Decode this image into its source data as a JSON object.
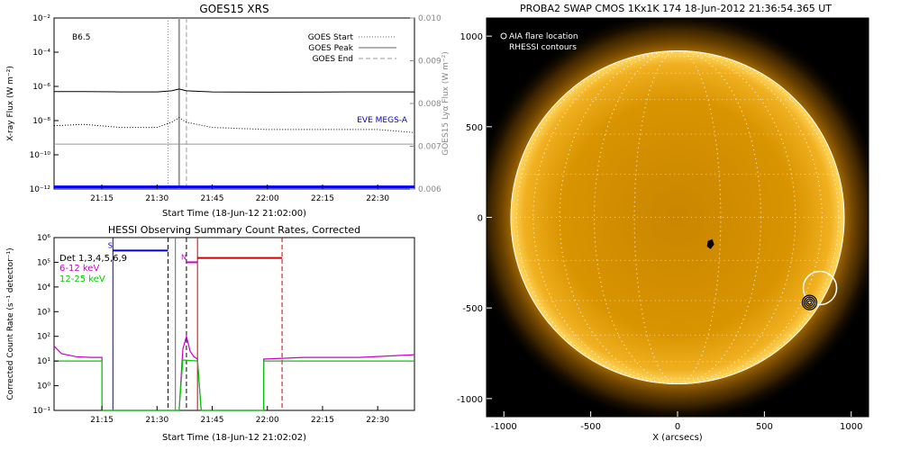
{
  "chart_data": [
    {
      "type": "line",
      "title": "GOES15 XRS",
      "xlabel": "Start Time (18-Jun-12 21:02:00)",
      "ylabel": "X-ray Flux (W m⁻²)",
      "y2label": "GOES15 Lyα Flux (W m⁻²)",
      "x_ticks": [
        "21:15",
        "21:30",
        "21:45",
        "22:00",
        "22:15",
        "22:30"
      ],
      "xlim": [
        "21:02",
        "22:40"
      ],
      "y_scale": "log",
      "ylim": [
        1e-12,
        0.01
      ],
      "y_tick_labels": [
        "10⁻¹²",
        "10⁻¹⁰",
        "10⁻⁸",
        "10⁻⁶",
        "10⁻⁴",
        "10⁻²"
      ],
      "y2lim": [
        0.006,
        0.01
      ],
      "y2_tick_labels": [
        "0.006",
        "0.007",
        "0.008",
        "0.009",
        "0.010"
      ],
      "class_label": "B6.5",
      "legend": [
        {
          "label": "GOES Start",
          "style": "dotted"
        },
        {
          "label": "GOES Peak",
          "style": "solid"
        },
        {
          "label": "GOES End",
          "style": "dashed"
        }
      ],
      "legend_position": "top-right",
      "annotation": "EVE MEGS-A",
      "annotation_color": "#0000cc",
      "markers": {
        "start": "21:33",
        "peak": "21:36",
        "end": "21:38"
      },
      "series": [
        {
          "color": "#000000",
          "style": "solid",
          "x": [
            "21:02",
            "21:10",
            "21:20",
            "21:30",
            "21:34",
            "21:36",
            "21:38",
            "21:45",
            "22:00",
            "22:15",
            "22:30",
            "22:40"
          ],
          "y": [
            5e-07,
            5e-07,
            4.8e-07,
            4.8e-07,
            5.5e-07,
            7e-07,
            5.5e-07,
            4.8e-07,
            4.6e-07,
            4.7e-07,
            4.8e-07,
            4.8e-07
          ]
        },
        {
          "color": "#000000",
          "style": "dotted",
          "x": [
            "21:02",
            "21:10",
            "21:20",
            "21:30",
            "21:34",
            "21:36",
            "21:38",
            "21:45",
            "22:00",
            "22:15",
            "22:30",
            "22:40"
          ],
          "y": [
            5e-09,
            6e-09,
            4e-09,
            4e-09,
            8e-09,
            1.5e-08,
            8e-09,
            4e-09,
            3e-09,
            3e-09,
            3e-09,
            2e-09
          ]
        },
        {
          "color": "#999999",
          "style": "solid",
          "x": [
            "21:02",
            "22:40"
          ],
          "y": [
            0.00705,
            0.00705
          ]
        },
        {
          "color": "#0000ff",
          "style": "solid",
          "x": [
            "21:02",
            "22:40"
          ],
          "y": [
            0.00605,
            0.00605
          ]
        }
      ]
    },
    {
      "type": "line",
      "title": "HESSI Observing Summary Count Rates, Corrected",
      "xlabel": "Start Time (18-Jun-12 21:02:02)",
      "ylabel": "Corrected Count Rate (s⁻¹ detector⁻¹)",
      "x_ticks": [
        "21:15",
        "21:30",
        "21:45",
        "22:00",
        "22:15",
        "22:30"
      ],
      "xlim": [
        "21:02",
        "22:40"
      ],
      "y_scale": "log",
      "ylim": [
        0.1,
        1000000.0
      ],
      "y_tick_labels": [
        "10⁻¹",
        "10⁰",
        "10¹",
        "10²",
        "10³",
        "10⁴",
        "10⁵",
        "10⁶"
      ],
      "legend": [
        {
          "label": "Det 1,3,4,5,6,9",
          "color": "#000000"
        },
        {
          "label": "6-12 keV",
          "color": "#cc00cc"
        },
        {
          "label": "12-25 keV",
          "color": "#00cc00"
        }
      ],
      "legend_position": "top-left",
      "flags": [
        {
          "label": "S",
          "color": "#0000cc",
          "x_start": "21:18",
          "x_end": "21:33",
          "y": 300000.0
        },
        {
          "label": "N",
          "color": "#cc00cc",
          "x_start": "21:38",
          "x_end": "21:41",
          "y": 100000.0
        },
        {
          "label": "",
          "color": "#cc0000",
          "x_start": "21:41",
          "x_end": "22:04",
          "y": 150000.0
        }
      ],
      "vlines": [
        {
          "x": "21:18",
          "color": "#0000cc",
          "style": "solid"
        },
        {
          "x": "21:33",
          "color": "#000000",
          "style": "dashed"
        },
        {
          "x": "21:35",
          "color": "#666666",
          "style": "solid"
        },
        {
          "x": "21:38",
          "color": "#000000",
          "style": "dashed"
        },
        {
          "x": "21:41",
          "color": "#cc0000",
          "style": "solid"
        },
        {
          "x": "22:04",
          "color": "#cc0000",
          "style": "dashed"
        }
      ],
      "series": [
        {
          "name": "6-12 keV",
          "color": "#cc00cc",
          "x": [
            "21:02",
            "21:04",
            "21:08",
            "21:12",
            "21:15",
            "21:15",
            "21:36",
            "21:37",
            "21:38",
            "21:39",
            "21:40",
            "21:41",
            "21:42",
            "21:59",
            "21:59",
            "22:10",
            "22:25",
            "22:40"
          ],
          "y": [
            40,
            20,
            15,
            14,
            14,
            0.1,
            0.1,
            30,
            100,
            25,
            15,
            12,
            0.1,
            0.1,
            12,
            14,
            14,
            18
          ]
        },
        {
          "name": "12-25 keV",
          "color": "#00cc00",
          "x": [
            "21:02",
            "21:10",
            "21:15",
            "21:15",
            "21:36",
            "21:37",
            "21:41",
            "21:42",
            "21:59",
            "21:59",
            "22:10",
            "22:25",
            "22:40"
          ],
          "y": [
            10,
            10,
            10,
            0.1,
            0.1,
            11,
            10,
            0.1,
            0.1,
            10,
            10,
            10,
            10
          ]
        }
      ]
    },
    {
      "type": "image",
      "title": "PROBA2 SWAP CMOS 1Kx1K 174 18-Jun-2012 21:36:54.365 UT",
      "xlabel": "X (arcsecs)",
      "xlim": [
        -1100,
        1100
      ],
      "ylim": [
        -1100,
        1100
      ],
      "x_ticks": [
        "-1000",
        "-500",
        "0",
        "500",
        "1000"
      ],
      "y_ticks": [
        "-1000",
        "-500",
        "0",
        "500",
        "1000"
      ],
      "legend": [
        {
          "label": "AIA flare location",
          "marker": "circle-open"
        },
        {
          "label": "RHESSI contours",
          "marker": "none"
        }
      ],
      "legend_position": "top-left",
      "solar_radius": 960,
      "aia_flare_location": [
        820,
        -390
      ],
      "rhessi_contour_center": [
        760,
        -470
      ],
      "small_feature": [
        190,
        -150
      ],
      "colors": {
        "disk": "#e8a000",
        "background": "#000000",
        "limb": "#ffffff"
      }
    }
  ]
}
